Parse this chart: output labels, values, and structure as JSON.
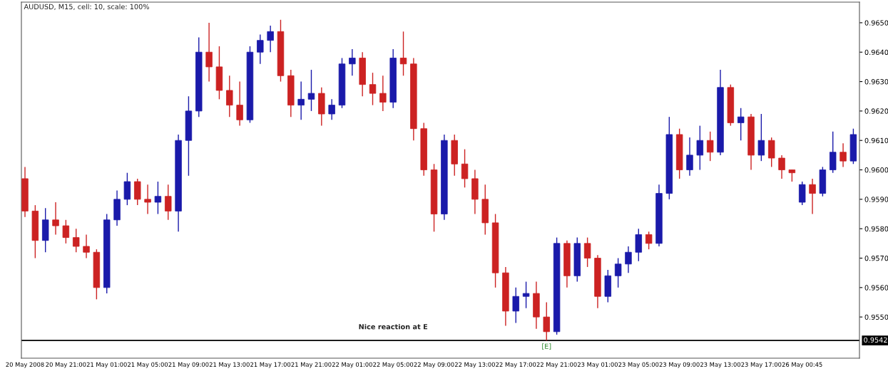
{
  "chart_data": {
    "type": "candlestick",
    "title": "AUDUSD, M15, cell: 10, scale: 100%",
    "categories": [
      "20 May 2008",
      null,
      null,
      null,
      "20 May 21:00",
      null,
      null,
      null,
      "21 May 01:00",
      null,
      null,
      null,
      "21 May 05:00",
      null,
      null,
      null,
      "21 May 09:00",
      null,
      null,
      null,
      "21 May 13:00",
      null,
      null,
      null,
      "21 May 17:00",
      null,
      null,
      null,
      "21 May 21:00",
      null,
      null,
      null,
      "22 May 01:00",
      null,
      null,
      null,
      "22 May 05:00",
      null,
      null,
      null,
      "22 May 09:00",
      null,
      null,
      null,
      "22 May 13:00",
      null,
      null,
      null,
      "22 May 17:00",
      null,
      null,
      null,
      "22 May 21:00",
      null,
      null,
      null,
      "23 May 01:00",
      null,
      null,
      null,
      "23 May 05:00",
      null,
      null,
      null,
      "23 May 09:00",
      null,
      null,
      null,
      "23 May 13:00",
      null,
      null,
      null,
      "23 May 17:00",
      null,
      null,
      null,
      "26 May 00:45",
      null,
      null,
      null,
      null,
      null
    ],
    "ohlc": [
      [
        0.9597,
        0.9601,
        0.9584,
        0.9586
      ],
      [
        0.9586,
        0.9588,
        0.957,
        0.9576
      ],
      [
        0.9576,
        0.9587,
        0.9572,
        0.9583
      ],
      [
        0.9583,
        0.9589,
        0.9578,
        0.9581
      ],
      [
        0.9581,
        0.9583,
        0.9575,
        0.9577
      ],
      [
        0.9577,
        0.958,
        0.9572,
        0.9574
      ],
      [
        0.9574,
        0.9578,
        0.957,
        0.9572
      ],
      [
        0.9572,
        0.9573,
        0.9556,
        0.956
      ],
      [
        0.956,
        0.9585,
        0.9558,
        0.9583
      ],
      [
        0.9583,
        0.9593,
        0.9581,
        0.959
      ],
      [
        0.959,
        0.9599,
        0.9588,
        0.9596
      ],
      [
        0.9596,
        0.9597,
        0.9588,
        0.959
      ],
      [
        0.959,
        0.9595,
        0.9585,
        0.9589
      ],
      [
        0.9589,
        0.9596,
        0.9585,
        0.9591
      ],
      [
        0.9591,
        0.9595,
        0.9583,
        0.9586
      ],
      [
        0.9586,
        0.9612,
        0.9579,
        0.961
      ],
      [
        0.961,
        0.9625,
        0.9598,
        0.962
      ],
      [
        0.962,
        0.9645,
        0.9618,
        0.964
      ],
      [
        0.964,
        0.965,
        0.963,
        0.9635
      ],
      [
        0.9635,
        0.9642,
        0.9624,
        0.9627
      ],
      [
        0.9627,
        0.9632,
        0.9618,
        0.9622
      ],
      [
        0.9622,
        0.963,
        0.9615,
        0.9617
      ],
      [
        0.9617,
        0.9642,
        0.9616,
        0.964
      ],
      [
        0.964,
        0.9646,
        0.9636,
        0.9644
      ],
      [
        0.9644,
        0.9649,
        0.964,
        0.9647
      ],
      [
        0.9647,
        0.9651,
        0.963,
        0.9632
      ],
      [
        0.9632,
        0.9634,
        0.9618,
        0.9622
      ],
      [
        0.9622,
        0.963,
        0.9617,
        0.9624
      ],
      [
        0.9624,
        0.9634,
        0.962,
        0.9626
      ],
      [
        0.9626,
        0.9628,
        0.9615,
        0.9619
      ],
      [
        0.9619,
        0.9624,
        0.9617,
        0.9622
      ],
      [
        0.9622,
        0.9638,
        0.9621,
        0.9636
      ],
      [
        0.9636,
        0.9641,
        0.9632,
        0.9638
      ],
      [
        0.9638,
        0.964,
        0.9625,
        0.9629
      ],
      [
        0.9629,
        0.9633,
        0.9622,
        0.9626
      ],
      [
        0.9626,
        0.9632,
        0.962,
        0.9623
      ],
      [
        0.9623,
        0.9641,
        0.9621,
        0.9638
      ],
      [
        0.9638,
        0.9647,
        0.9632,
        0.9636
      ],
      [
        0.9636,
        0.9638,
        0.961,
        0.9614
      ],
      [
        0.9614,
        0.9616,
        0.9598,
        0.96
      ],
      [
        0.96,
        0.9602,
        0.9579,
        0.9585
      ],
      [
        0.9585,
        0.9612,
        0.9583,
        0.961
      ],
      [
        0.961,
        0.9612,
        0.9598,
        0.9602
      ],
      [
        0.9602,
        0.9607,
        0.9594,
        0.9597
      ],
      [
        0.9597,
        0.96,
        0.9585,
        0.959
      ],
      [
        0.959,
        0.9595,
        0.9578,
        0.9582
      ],
      [
        0.9582,
        0.9585,
        0.956,
        0.9565
      ],
      [
        0.9565,
        0.9567,
        0.9547,
        0.9552
      ],
      [
        0.9552,
        0.956,
        0.9548,
        0.9557
      ],
      [
        0.9557,
        0.9562,
        0.9553,
        0.9558
      ],
      [
        0.9558,
        0.9562,
        0.9546,
        0.955
      ],
      [
        0.955,
        0.9555,
        0.9542,
        0.9545
      ],
      [
        0.9545,
        0.9577,
        0.9544,
        0.9575
      ],
      [
        0.9575,
        0.9576,
        0.956,
        0.9564
      ],
      [
        0.9564,
        0.9577,
        0.9562,
        0.9575
      ],
      [
        0.9575,
        0.9577,
        0.9567,
        0.957
      ],
      [
        0.957,
        0.9571,
        0.9553,
        0.9557
      ],
      [
        0.9557,
        0.9566,
        0.9555,
        0.9564
      ],
      [
        0.9564,
        0.957,
        0.956,
        0.9568
      ],
      [
        0.9568,
        0.9574,
        0.9565,
        0.9572
      ],
      [
        0.9572,
        0.958,
        0.9569,
        0.9578
      ],
      [
        0.9578,
        0.9579,
        0.9573,
        0.9575
      ],
      [
        0.9575,
        0.9595,
        0.9574,
        0.9592
      ],
      [
        0.9592,
        0.9618,
        0.959,
        0.9612
      ],
      [
        0.9612,
        0.9614,
        0.9597,
        0.96
      ],
      [
        0.96,
        0.9611,
        0.9598,
        0.9605
      ],
      [
        0.9605,
        0.9615,
        0.96,
        0.961
      ],
      [
        0.961,
        0.9613,
        0.9603,
        0.9606
      ],
      [
        0.9606,
        0.9634,
        0.9605,
        0.9628
      ],
      [
        0.9628,
        0.9629,
        0.9615,
        0.9616
      ],
      [
        0.9616,
        0.9621,
        0.961,
        0.9618
      ],
      [
        0.9618,
        0.9619,
        0.96,
        0.9605
      ],
      [
        0.9605,
        0.9619,
        0.9603,
        0.961
      ],
      [
        0.961,
        0.9611,
        0.9601,
        0.9604
      ],
      [
        0.9604,
        0.9605,
        0.9597,
        0.96
      ],
      [
        0.96,
        0.96,
        0.9596,
        0.9599
      ],
      [
        0.9589,
        0.9596,
        0.9588,
        0.9595
      ],
      [
        0.9595,
        0.9597,
        0.9585,
        0.9592
      ],
      [
        0.9592,
        0.9601,
        0.9591,
        0.96
      ],
      [
        0.96,
        0.9613,
        0.9599,
        0.9606
      ],
      [
        0.9606,
        0.9609,
        0.9601,
        0.9603
      ],
      [
        0.9603,
        0.9614,
        0.9602,
        0.9612
      ]
    ],
    "colors": [
      "#cc2222",
      "#cc2222",
      "#1a1aaa",
      "#cc2222",
      "#cc2222",
      "#cc2222",
      "#cc2222",
      "#cc2222",
      "#1a1aaa",
      "#1a1aaa",
      "#1a1aaa",
      "#cc2222",
      "#cc2222",
      "#1a1aaa",
      "#cc2222",
      "#1a1aaa",
      "#1a1aaa",
      "#1a1aaa",
      "#cc2222",
      "#cc2222",
      "#cc2222",
      "#cc2222",
      "#1a1aaa",
      "#1a1aaa",
      "#1a1aaa",
      "#cc2222",
      "#cc2222",
      "#1a1aaa",
      "#1a1aaa",
      "#cc2222",
      "#1a1aaa",
      "#1a1aaa",
      "#1a1aaa",
      "#cc2222",
      "#cc2222",
      "#cc2222",
      "#1a1aaa",
      "#cc2222",
      "#cc2222",
      "#cc2222",
      "#cc2222",
      "#1a1aaa",
      "#cc2222",
      "#cc2222",
      "#cc2222",
      "#cc2222",
      "#cc2222",
      "#cc2222",
      "#1a1aaa",
      "#1a1aaa",
      "#cc2222",
      "#cc2222",
      "#1a1aaa",
      "#cc2222",
      "#1a1aaa",
      "#cc2222",
      "#cc2222",
      "#1a1aaa",
      "#1a1aaa",
      "#1a1aaa",
      "#1a1aaa",
      "#cc2222",
      "#1a1aaa",
      "#1a1aaa",
      "#cc2222",
      "#1a1aaa",
      "#1a1aaa",
      "#cc2222",
      "#1a1aaa",
      "#cc2222",
      "#1a1aaa",
      "#cc2222",
      "#1a1aaa",
      "#cc2222",
      "#cc2222",
      "#cc2222",
      "#1a1aaa",
      "#cc2222",
      "#1a1aaa",
      "#1a1aaa",
      "#cc2222",
      "#1a1aaa"
    ],
    "ylim": [
      0.9536,
      0.9657
    ],
    "yticks": [
      {
        "value": 0.955,
        "label": "0.9550"
      },
      {
        "value": 0.956,
        "label": "0.9560"
      },
      {
        "value": 0.957,
        "label": "0.9570"
      },
      {
        "value": 0.958,
        "label": "0.9580"
      },
      {
        "value": 0.959,
        "label": "0.9590"
      },
      {
        "value": 0.96,
        "label": "0.9600"
      },
      {
        "value": 0.961,
        "label": "0.9610"
      },
      {
        "value": 0.962,
        "label": "0.9620"
      },
      {
        "value": 0.963,
        "label": "0.9630"
      },
      {
        "value": 0.964,
        "label": "0.9640"
      },
      {
        "value": 0.965,
        "label": "0.9650"
      }
    ],
    "ref_lines": [
      {
        "axis": "y",
        "value": 0.9542,
        "label": "0.9542",
        "color": "#000000",
        "line_style": "solid"
      }
    ],
    "annotations": [
      "Nice reaction at E",
      {
        "text": "[E]",
        "y": 0.9542
      }
    ],
    "grid": false
  }
}
